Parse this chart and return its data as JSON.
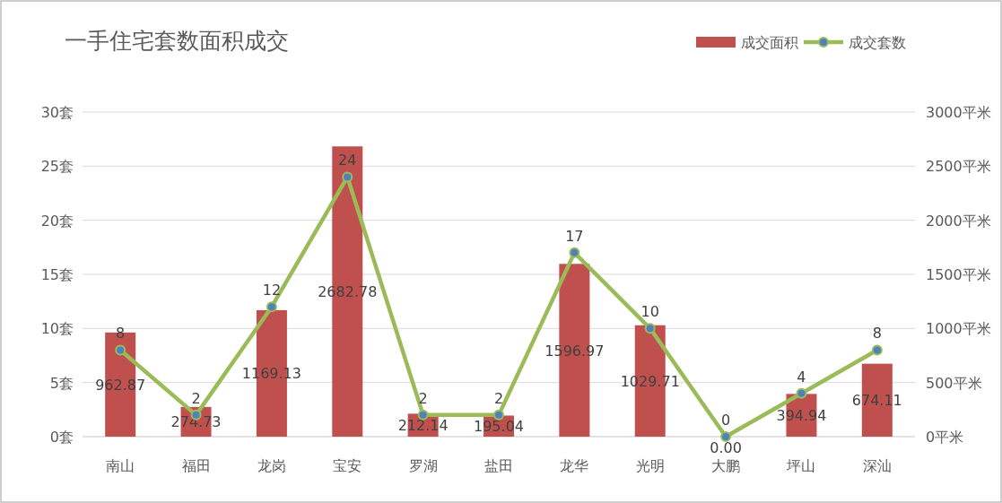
{
  "chart_data": {
    "type": "bar",
    "title": "一手住宅套数面积成交",
    "categories": [
      "南山",
      "福田",
      "龙岗",
      "宝安",
      "罗湖",
      "盐田",
      "龙华",
      "光明",
      "大鹏",
      "坪山",
      "深汕"
    ],
    "series": [
      {
        "name": "成交面积",
        "axis": "y2",
        "color": "#c0504d",
        "values": [
          962.87,
          274.73,
          1169.13,
          2682.78,
          212.14,
          195.04,
          1596.97,
          1029.71,
          0.0,
          394.94,
          674.11
        ],
        "value_labels": [
          "962.87",
          "274.73",
          "1169.13",
          "2682.78",
          "212.14",
          "195.04",
          "1596.97",
          "1029.71",
          "0.00",
          "394.94",
          "674.11"
        ]
      },
      {
        "name": "成交套数",
        "type": "line",
        "color": "#9bbb59",
        "marker": "circle",
        "values": [
          8,
          2,
          12,
          24,
          2,
          2,
          17,
          10,
          0,
          4,
          8
        ],
        "value_labels": [
          "8",
          "2",
          "12",
          "24",
          "2",
          "2",
          "17",
          "10",
          "0",
          "4",
          "8"
        ]
      }
    ],
    "ylim": [
      0,
      30
    ],
    "yticks": [
      {
        "value": 0,
        "label": "0套"
      },
      {
        "value": 5,
        "label": "5套"
      },
      {
        "value": 10,
        "label": "10套"
      },
      {
        "value": 15,
        "label": "15套"
      },
      {
        "value": 20,
        "label": "20套"
      },
      {
        "value": 25,
        "label": "25套"
      },
      {
        "value": 30,
        "label": "30套"
      }
    ],
    "y2lim": [
      0,
      3000
    ],
    "y2ticks": [
      {
        "value": 0,
        "label": "0平米"
      },
      {
        "value": 500,
        "label": "500平米"
      },
      {
        "value": 1000,
        "label": "1000平米"
      },
      {
        "value": 1500,
        "label": "1500平米"
      },
      {
        "value": 2000,
        "label": "2000平米"
      },
      {
        "value": 2500,
        "label": "2500平米"
      },
      {
        "value": 3000,
        "label": "3000平米"
      }
    ],
    "grid": "y",
    "legend": "top right"
  }
}
